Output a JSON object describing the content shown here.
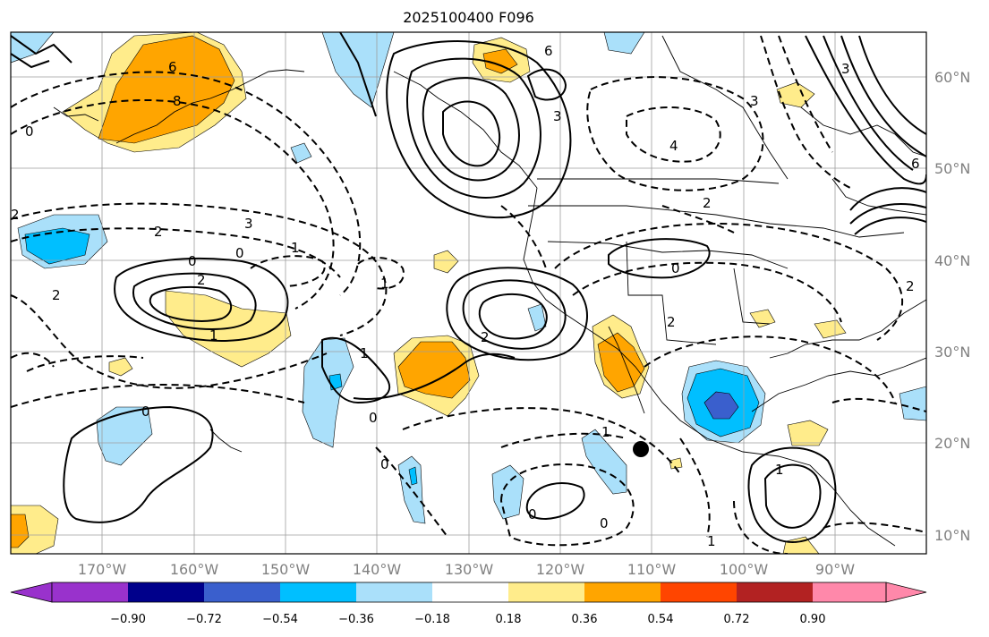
{
  "title": "2025100400 F096",
  "map": {
    "projection": "cylindrical",
    "lon_range": [
      -180,
      -80
    ],
    "lat_range": [
      8,
      65
    ],
    "meridians": [
      -170,
      -160,
      -150,
      -140,
      -130,
      -120,
      -110,
      -100,
      -90,
      -80
    ],
    "parallels": [
      10,
      20,
      30,
      40,
      50,
      60
    ],
    "lon_labels": [
      "170°W",
      "160°W",
      "150°W",
      "140°W",
      "130°W",
      "120°W",
      "110°W",
      "100°W",
      "90°W"
    ],
    "lat_labels": [
      "60°N",
      "50°N",
      "40°N",
      "30°N",
      "20°N",
      "10°N"
    ],
    "grid": true,
    "marker": {
      "lon": -111,
      "lat": 19.3,
      "symbol": "filled-circle"
    }
  },
  "colorbar": {
    "extend": "both",
    "ticks": [
      "−0.90",
      "−0.72",
      "−0.54",
      "−0.36",
      "−0.18",
      "0.18",
      "0.36",
      "0.54",
      "0.72",
      "0.90"
    ],
    "colors": [
      "#9932cc",
      "#00008b",
      "#3a5fcd",
      "#00bfff",
      "#aae0fa",
      "#ffffff",
      "#ffec8b",
      "#ffa500",
      "#ff4500",
      "#b22222",
      "#ff88aa"
    ]
  },
  "contour_labels": [
    "6",
    "6",
    "8",
    "3",
    "3",
    "0",
    "0",
    "0",
    "0",
    "0",
    "0",
    "0",
    "0",
    "0",
    "1",
    "1",
    "1",
    "1",
    "1",
    "1",
    "1",
    "2",
    "2",
    "2",
    "2",
    "2",
    "2",
    "2",
    "2",
    "3",
    "3",
    "4",
    "6"
  ]
}
